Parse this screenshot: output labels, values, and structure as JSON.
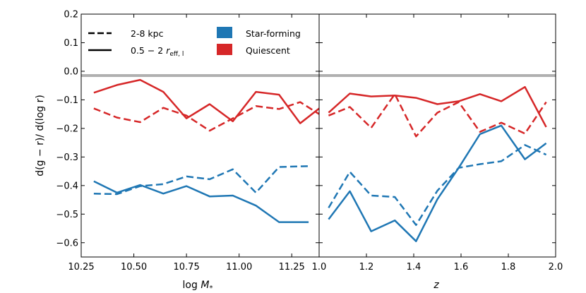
{
  "chart_data": [
    {
      "type": "line",
      "panel": "left",
      "xlabel_main": "log",
      "xlabel_italic": "M",
      "xlabel_sub": "*",
      "ylabel": "d(g − r)/ d(log r)",
      "xlim": [
        10.25,
        11.38
      ],
      "ylim": [
        -0.65,
        0.2
      ],
      "xticks": [
        10.25,
        10.5,
        10.75,
        11.0,
        11.25
      ],
      "xtick_labels": [
        "10.25",
        "10.50",
        "10.75",
        "11.00",
        "11.25"
      ],
      "yticks": [
        0.2,
        0.1,
        0.0,
        -0.1,
        -0.2,
        -0.3,
        -0.4,
        -0.5,
        -0.6
      ],
      "ytick_labels": [
        "0.2",
        "0.1",
        "0.0",
        "−0.1",
        "−0.2",
        "−0.3",
        "−0.4",
        "−0.5",
        "−0.6"
      ],
      "reference_line": 0.0,
      "series": [
        {
          "name": "Quiescent",
          "range": "0.5 − 2 r_eff,l",
          "style": "solid",
          "color": "#d62728",
          "x": [
            10.31,
            10.42,
            10.53,
            10.64,
            10.75,
            10.86,
            10.97,
            11.08,
            11.19,
            11.29,
            11.38
          ],
          "y": [
            -0.075,
            -0.048,
            -0.03,
            -0.072,
            -0.165,
            -0.115,
            -0.175,
            -0.072,
            -0.082,
            -0.182,
            -0.13
          ]
        },
        {
          "name": "Quiescent",
          "range": "2-8 kpc",
          "style": "dashed",
          "color": "#d62728",
          "x": [
            10.31,
            10.42,
            10.53,
            10.64,
            10.75,
            10.86,
            10.97,
            11.08,
            11.19,
            11.29,
            11.38
          ],
          "y": [
            -0.13,
            -0.162,
            -0.178,
            -0.128,
            -0.155,
            -0.208,
            -0.165,
            -0.122,
            -0.132,
            -0.108,
            -0.15
          ]
        },
        {
          "name": "Star-forming",
          "range": "2-8 kpc",
          "style": "dashed",
          "color": "#1f77b4",
          "x": [
            10.31,
            10.42,
            10.53,
            10.64,
            10.75,
            10.86,
            10.97,
            11.08,
            11.19,
            11.33
          ],
          "y": [
            -0.428,
            -0.43,
            -0.402,
            -0.395,
            -0.368,
            -0.378,
            -0.343,
            -0.425,
            -0.335,
            -0.332
          ]
        },
        {
          "name": "Star-forming",
          "range": "0.5 − 2 r_eff,l",
          "style": "solid",
          "color": "#1f77b4",
          "x": [
            10.31,
            10.42,
            10.53,
            10.64,
            10.75,
            10.86,
            10.97,
            11.08,
            11.19,
            11.33
          ],
          "y": [
            -0.385,
            -0.425,
            -0.398,
            -0.428,
            -0.402,
            -0.438,
            -0.435,
            -0.47,
            -0.528,
            -0.528
          ]
        }
      ]
    },
    {
      "type": "line",
      "panel": "right",
      "xlabel": "z",
      "xlim": [
        1.0,
        2.0
      ],
      "ylim": [
        -0.65,
        0.2
      ],
      "xticks": [
        1.0,
        1.2,
        1.4,
        1.6,
        1.8,
        2.0
      ],
      "xtick_labels": [
        "1.0",
        "1.2",
        "1.4",
        "1.6",
        "1.8",
        "2.0"
      ],
      "reference_line": 0.0,
      "series": [
        {
          "name": "Quiescent",
          "range": "0.5 − 2 r_eff,l",
          "style": "solid",
          "color": "#d62728",
          "x": [
            1.04,
            1.13,
            1.22,
            1.32,
            1.41,
            1.5,
            1.59,
            1.68,
            1.77,
            1.87,
            1.96
          ],
          "y": [
            -0.145,
            -0.078,
            -0.088,
            -0.085,
            -0.093,
            -0.115,
            -0.105,
            -0.08,
            -0.105,
            -0.055,
            -0.195
          ]
        },
        {
          "name": "Quiescent",
          "range": "2-8 kpc",
          "style": "dashed",
          "color": "#d62728",
          "x": [
            1.04,
            1.13,
            1.22,
            1.32,
            1.41,
            1.5,
            1.59,
            1.68,
            1.77,
            1.87,
            1.96
          ],
          "y": [
            -0.155,
            -0.125,
            -0.198,
            -0.08,
            -0.228,
            -0.145,
            -0.108,
            -0.212,
            -0.18,
            -0.218,
            -0.108
          ]
        },
        {
          "name": "Star-forming",
          "range": "2-8 kpc",
          "style": "dashed",
          "color": "#1f77b4",
          "x": [
            1.04,
            1.13,
            1.22,
            1.32,
            1.41,
            1.5,
            1.59,
            1.68,
            1.77,
            1.87,
            1.96
          ],
          "y": [
            -0.478,
            -0.352,
            -0.435,
            -0.44,
            -0.538,
            -0.418,
            -0.338,
            -0.325,
            -0.315,
            -0.258,
            -0.292
          ]
        },
        {
          "name": "Star-forming",
          "range": "0.5 − 2 r_eff,l",
          "style": "solid",
          "color": "#1f77b4",
          "x": [
            1.04,
            1.13,
            1.22,
            1.32,
            1.41,
            1.5,
            1.59,
            1.68,
            1.77,
            1.87,
            1.96
          ],
          "y": [
            -0.518,
            -0.42,
            -0.56,
            -0.522,
            -0.595,
            -0.448,
            -0.338,
            -0.22,
            -0.19,
            -0.308,
            -0.252
          ]
        }
      ]
    }
  ],
  "legend": {
    "placement": "upper-left",
    "style_items": [
      {
        "style": "dashed",
        "label": "2-8 kpc"
      },
      {
        "style": "solid",
        "label_prefix": "0.5 − 2 ",
        "label_italic": "r",
        "label_sub": "eff, l"
      }
    ],
    "color_items": [
      {
        "color": "#1f77b4",
        "label": "Star-forming"
      },
      {
        "color": "#d62728",
        "label": "Quiescent"
      }
    ]
  },
  "colors": {
    "star_forming": "#1f77b4",
    "quiescent": "#d62728",
    "zero_line": "#b0b0b0"
  }
}
